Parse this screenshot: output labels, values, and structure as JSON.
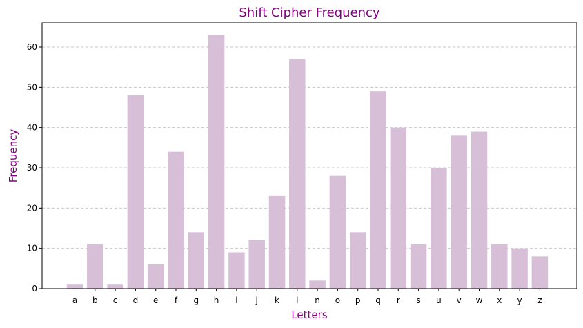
{
  "chart_data": {
    "type": "bar",
    "title": "Shift Cipher Frequency",
    "xlabel": "Letters",
    "ylabel": "Frequency",
    "categories": [
      "a",
      "b",
      "c",
      "d",
      "e",
      "f",
      "g",
      "h",
      "i",
      "j",
      "k",
      "l",
      "n",
      "o",
      "p",
      "q",
      "r",
      "s",
      "u",
      "v",
      "w",
      "x",
      "y",
      "z"
    ],
    "values": [
      1,
      11,
      1,
      48,
      6,
      34,
      14,
      63,
      9,
      12,
      23,
      57,
      2,
      28,
      14,
      49,
      40,
      11,
      30,
      38,
      39,
      11,
      10,
      8
    ],
    "ylim": [
      0,
      66
    ],
    "yticks": [
      0,
      10,
      20,
      30,
      40,
      50,
      60
    ],
    "grid": "y-dashed",
    "legend": "none"
  },
  "colors": {
    "bar": "#d8bfd8",
    "title": "#800080",
    "axis_label": "#800080",
    "grid": "#c8c8c8",
    "axis": "#000000"
  }
}
